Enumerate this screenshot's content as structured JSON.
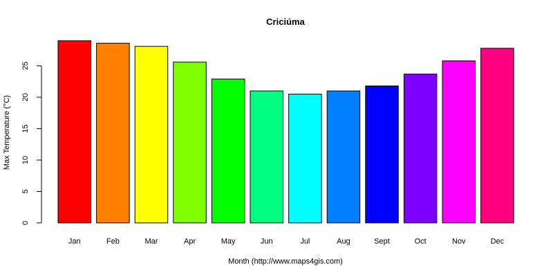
{
  "chart_data": {
    "type": "bar",
    "title": "Criciúma",
    "xlabel": "Month (http://www.maps4gis.com)",
    "ylabel": "Max Temperature (°C)",
    "ylim": [
      0,
      29
    ],
    "yticks": [
      0,
      5,
      10,
      15,
      20,
      25
    ],
    "grid": false,
    "categories": [
      "Jan",
      "Feb",
      "Mar",
      "Apr",
      "May",
      "Jun",
      "Jul",
      "Aug",
      "Sept",
      "Oct",
      "Nov",
      "Dec"
    ],
    "values": [
      29.0,
      28.6,
      28.1,
      25.6,
      22.9,
      21.0,
      20.5,
      21.0,
      21.8,
      23.7,
      25.8,
      27.8
    ],
    "colors": [
      "#ff0000",
      "#ff8000",
      "#ffff00",
      "#80ff00",
      "#00ff00",
      "#00ff80",
      "#00ffff",
      "#0080ff",
      "#0000ff",
      "#8000ff",
      "#ff00ff",
      "#ff0080"
    ]
  }
}
